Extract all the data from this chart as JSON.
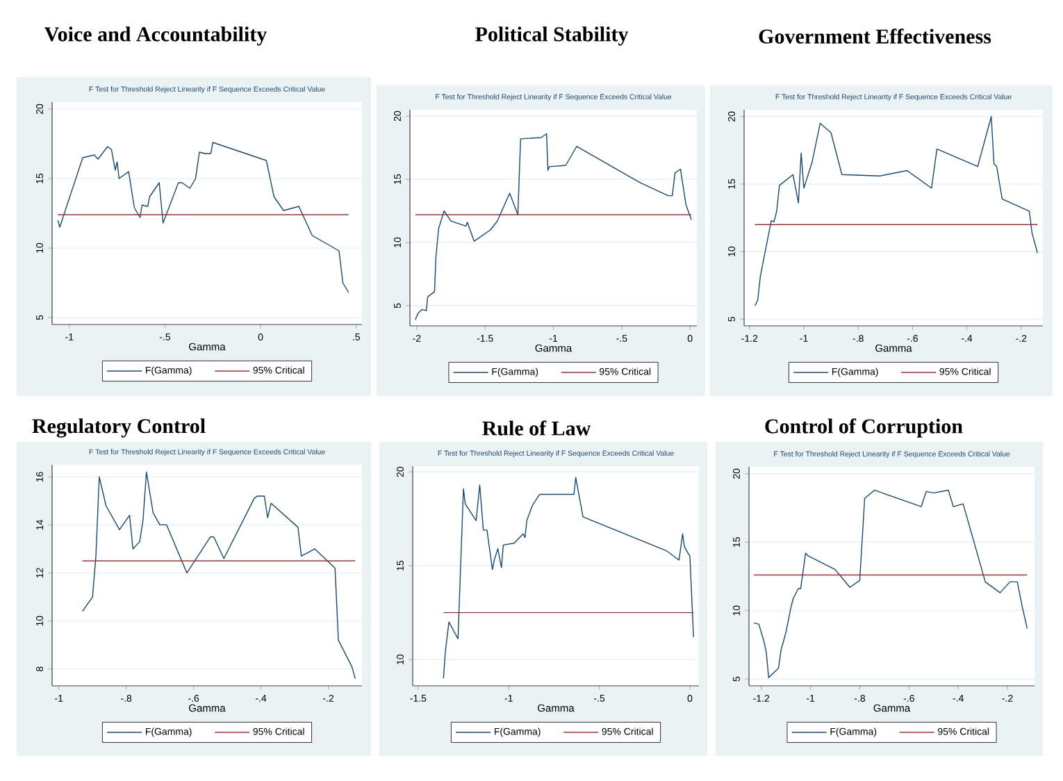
{
  "chart_data": [
    {
      "type": "line",
      "title": "Voice and Accountability",
      "subtitle": "F Test for Threshold Reject Linearity if F Sequence Exceeds Critical Value",
      "xlabel": "Gamma",
      "xlim": [
        -1.09,
        0.53
      ],
      "ylim": [
        4.5,
        20.5
      ],
      "xticks": [
        -1,
        {
          "value": -0.5,
          "label": "-.5"
        },
        0,
        {
          "value": 0.5,
          "label": ".5"
        }
      ],
      "yticks": [
        5,
        10,
        15,
        20
      ],
      "grid": "y",
      "legend": "bottom",
      "series": [
        {
          "name": "F(Gamma)",
          "color": "#1a476f",
          "x": [
            -1.06,
            -1.05,
            -0.93,
            -0.87,
            -0.85,
            -0.8,
            -0.78,
            -0.76,
            -0.75,
            -0.74,
            -0.69,
            -0.66,
            -0.63,
            -0.62,
            -0.59,
            -0.58,
            -0.53,
            -0.51,
            -0.43,
            -0.41,
            -0.37,
            -0.34,
            -0.32,
            -0.29,
            -0.26,
            -0.25,
            0.03,
            0.07,
            0.12,
            0.2,
            0.27,
            0.41,
            0.43,
            0.46
          ],
          "values": [
            12.0,
            11.5,
            16.5,
            16.7,
            16.4,
            17.3,
            17.1,
            15.6,
            16.2,
            15.0,
            15.5,
            12.9,
            12.2,
            13.1,
            13.0,
            13.7,
            14.7,
            11.8,
            14.7,
            14.7,
            14.3,
            15.0,
            16.9,
            16.8,
            16.8,
            17.6,
            16.3,
            13.7,
            12.7,
            13.0,
            10.9,
            9.8,
            7.5,
            6.8
          ]
        },
        {
          "name": "95% Critical",
          "color": "#90353b",
          "x": [
            -1.06,
            0.46
          ],
          "values": [
            12.4,
            12.4
          ]
        }
      ]
    },
    {
      "type": "line",
      "title": "Political Stability",
      "subtitle": "F Test for Threshold Reject Linearity if F Sequence Exceeds Critical Value",
      "xlabel": "Gamma",
      "xlim": [
        -2.05,
        0.05
      ],
      "ylim": [
        3.4,
        20.5
      ],
      "xticks": [
        -2,
        -1.5,
        -1,
        {
          "value": -0.5,
          "label": "-.5"
        },
        0
      ],
      "yticks": [
        5,
        10,
        15,
        20
      ],
      "grid": "y",
      "legend": "bottom",
      "series": [
        {
          "name": "F(Gamma)",
          "color": "#1a476f",
          "x": [
            -2.01,
            -1.99,
            -1.96,
            -1.93,
            -1.92,
            -1.87,
            -1.86,
            -1.84,
            -1.8,
            -1.75,
            -1.64,
            -1.63,
            -1.58,
            -1.46,
            -1.41,
            -1.32,
            -1.26,
            -1.24,
            -1.09,
            -1.05,
            -1.04,
            -1.03,
            -0.91,
            -0.83,
            -0.36,
            -0.16,
            -0.13,
            -0.11,
            -0.07,
            -0.03,
            0.01
          ],
          "values": [
            3.9,
            4.4,
            4.7,
            4.6,
            5.7,
            6.1,
            8.8,
            11.1,
            12.5,
            11.7,
            11.3,
            11.6,
            10.1,
            11.0,
            11.7,
            13.9,
            12.2,
            18.2,
            18.3,
            18.6,
            15.7,
            16.0,
            16.1,
            17.6,
            14.7,
            13.7,
            13.7,
            15.5,
            15.8,
            13.0,
            11.8
          ]
        },
        {
          "name": "95% Critical",
          "color": "#90353b",
          "x": [
            -2.01,
            0.01
          ],
          "values": [
            12.2,
            12.2
          ]
        }
      ]
    },
    {
      "type": "line",
      "title": "Government Effectiveness",
      "subtitle": "F Test for Threshold Reject Linearity if F Sequence Exceeds Critical Value",
      "xlabel": "Gamma",
      "xlim": [
        -1.22,
        -0.12
      ],
      "ylim": [
        4.5,
        20.5
      ],
      "xticks": [
        -1.2,
        -1,
        {
          "value": -0.8,
          "label": "-.8"
        },
        {
          "value": -0.6,
          "label": "-.6"
        },
        {
          "value": -0.4,
          "label": "-.4"
        },
        {
          "value": -0.2,
          "label": "-.2"
        }
      ],
      "yticks": [
        5,
        10,
        15,
        20
      ],
      "grid": "y",
      "legend": "bottom",
      "series": [
        {
          "name": "F(Gamma)",
          "color": "#1a476f",
          "x": [
            -1.18,
            -1.17,
            -1.16,
            -1.12,
            -1.11,
            -1.1,
            -1.09,
            -1.04,
            -1.02,
            -1.01,
            -1.0,
            -0.97,
            -0.94,
            -0.9,
            -0.86,
            -0.72,
            -0.62,
            -0.53,
            -0.51,
            -0.36,
            -0.31,
            -0.3,
            -0.29,
            -0.27,
            -0.17,
            -0.16,
            -0.14
          ],
          "values": [
            6.0,
            6.4,
            8.2,
            12.3,
            12.2,
            13.0,
            14.9,
            15.7,
            13.6,
            17.3,
            14.7,
            16.6,
            19.5,
            18.8,
            15.7,
            15.6,
            16.0,
            14.7,
            17.6,
            16.3,
            20.0,
            16.5,
            16.3,
            13.9,
            13.0,
            11.4,
            9.9
          ]
        },
        {
          "name": "95% Critical",
          "color": "#90353b",
          "x": [
            -1.18,
            -0.14
          ],
          "values": [
            12.0,
            12.0
          ]
        }
      ]
    },
    {
      "type": "line",
      "title": "Regulatory Control",
      "subtitle": "F Test for Threshold Reject Linearity if F Sequence Exceeds Critical Value",
      "xlabel": "Gamma",
      "xlim": [
        -1.02,
        -0.1
      ],
      "ylim": [
        7.3,
        16.5
      ],
      "xticks": [
        -1,
        {
          "value": -0.8,
          "label": "-.8"
        },
        {
          "value": -0.6,
          "label": "-.6"
        },
        {
          "value": -0.4,
          "label": "-.4"
        },
        {
          "value": -0.2,
          "label": "-.2"
        }
      ],
      "yticks": [
        8,
        10,
        12,
        14,
        16
      ],
      "grid": "y",
      "legend": "bottom",
      "series": [
        {
          "name": "F(Gamma)",
          "color": "#1a476f",
          "x": [
            -0.93,
            -0.9,
            -0.89,
            -0.88,
            -0.86,
            -0.82,
            -0.79,
            -0.78,
            -0.76,
            -0.75,
            -0.74,
            -0.72,
            -0.7,
            -0.68,
            -0.62,
            -0.55,
            -0.54,
            -0.51,
            -0.42,
            -0.41,
            -0.39,
            -0.38,
            -0.37,
            -0.29,
            -0.28,
            -0.24,
            -0.18,
            -0.17,
            -0.13,
            -0.12
          ],
          "values": [
            10.4,
            11.0,
            12.7,
            16.0,
            14.8,
            13.8,
            14.4,
            13.0,
            13.3,
            14.2,
            16.2,
            14.5,
            14.0,
            14.0,
            12.0,
            13.5,
            13.5,
            12.6,
            15.1,
            15.2,
            15.2,
            14.3,
            14.9,
            13.9,
            12.7,
            13.0,
            12.2,
            9.2,
            8.1,
            7.6
          ]
        },
        {
          "name": "95% Critical",
          "color": "#90353b",
          "x": [
            -0.93,
            -0.12
          ],
          "values": [
            12.5,
            12.5
          ]
        }
      ]
    },
    {
      "type": "line",
      "title": "Rule of Law",
      "subtitle": "F Test for Threshold Reject Linearity if F Sequence Exceeds Critical Value",
      "xlabel": "Gamma",
      "xlim": [
        -1.53,
        0.05
      ],
      "ylim": [
        8.6,
        20.3
      ],
      "xticks": [
        -1.5,
        -1,
        {
          "value": -0.5,
          "label": "-.5"
        },
        0
      ],
      "yticks": [
        10,
        15,
        20
      ],
      "grid": "y",
      "legend": "bottom",
      "series": [
        {
          "name": "F(Gamma)",
          "color": "#1a476f",
          "x": [
            -1.36,
            -1.35,
            -1.33,
            -1.28,
            -1.25,
            -1.24,
            -1.18,
            -1.16,
            -1.14,
            -1.12,
            -1.09,
            -1.08,
            -1.06,
            -1.04,
            -1.03,
            -0.97,
            -0.92,
            -0.91,
            -0.9,
            -0.87,
            -0.83,
            -0.64,
            -0.63,
            -0.59,
            -0.13,
            -0.06,
            -0.04,
            -0.03,
            0.0,
            0.02
          ],
          "values": [
            9.0,
            10.4,
            12.0,
            11.1,
            19.1,
            18.3,
            17.4,
            19.3,
            16.9,
            16.9,
            14.8,
            15.3,
            15.9,
            14.9,
            16.1,
            16.2,
            16.7,
            16.5,
            17.4,
            18.2,
            18.8,
            18.8,
            19.7,
            17.6,
            15.8,
            15.3,
            16.7,
            16.0,
            15.5,
            11.2
          ]
        },
        {
          "name": "95% Critical",
          "color": "#90353b",
          "x": [
            -1.36,
            0.02
          ],
          "values": [
            12.5,
            12.5
          ]
        }
      ]
    },
    {
      "type": "line",
      "title": "Control of Corruption",
      "subtitle": "F Test for Threshold Reject Linearity if F Sequence Exceeds Critical Value",
      "xlabel": "Gamma",
      "xlim": [
        -1.25,
        -0.09
      ],
      "ylim": [
        4.5,
        20.5
      ],
      "xticks": [
        -1.2,
        -1,
        {
          "value": -0.8,
          "label": "-.8"
        },
        {
          "value": -0.6,
          "label": "-.6"
        },
        {
          "value": -0.4,
          "label": "-.4"
        },
        {
          "value": -0.2,
          "label": "-.2"
        }
      ],
      "yticks": [
        5,
        10,
        15,
        20
      ],
      "grid": "y",
      "legend": "bottom",
      "series": [
        {
          "name": "F(Gamma)",
          "color": "#1a476f",
          "x": [
            -1.23,
            -1.21,
            -1.19,
            -1.18,
            -1.17,
            -1.13,
            -1.12,
            -1.1,
            -1.08,
            -1.07,
            -1.05,
            -1.04,
            -1.02,
            -1.01,
            -0.9,
            -0.84,
            -0.8,
            -0.78,
            -0.74,
            -0.55,
            -0.53,
            -0.5,
            -0.44,
            -0.42,
            -0.38,
            -0.29,
            -0.23,
            -0.19,
            -0.16,
            -0.14,
            -0.12
          ],
          "values": [
            9.1,
            9.0,
            7.8,
            7.0,
            5.1,
            5.8,
            7.1,
            8.4,
            10.2,
            10.9,
            11.6,
            11.6,
            14.2,
            14.0,
            13.0,
            11.7,
            12.2,
            18.2,
            18.8,
            17.6,
            18.7,
            18.6,
            18.8,
            17.6,
            17.8,
            12.1,
            11.3,
            12.1,
            12.1,
            10.3,
            8.7
          ]
        },
        {
          "name": "95% Critical",
          "color": "#90353b",
          "x": [
            -1.23,
            -0.12
          ],
          "values": [
            12.6,
            12.6
          ]
        }
      ]
    }
  ]
}
